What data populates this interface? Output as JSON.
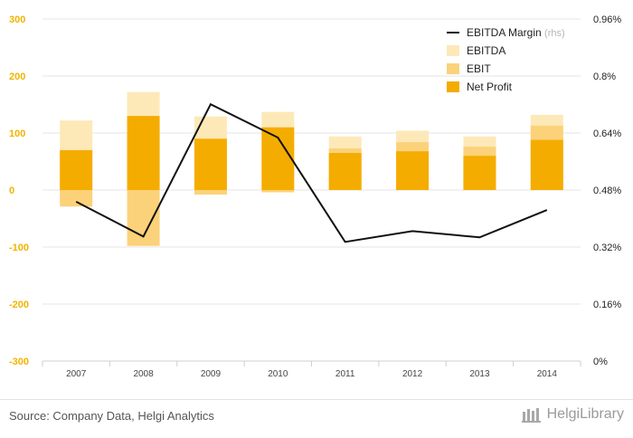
{
  "chart_data": {
    "type": "bar",
    "categories": [
      "2007",
      "2008",
      "2009",
      "2010",
      "2011",
      "2012",
      "2013",
      "2014"
    ],
    "series": [
      {
        "name": "EBITDA",
        "kind": "bar",
        "values": [
          122,
          172,
          129,
          137,
          94,
          104,
          94,
          132
        ],
        "color": "#fde9b8"
      },
      {
        "name": "EBIT",
        "kind": "bar",
        "values": [
          -29,
          -98,
          -8,
          -4,
          73,
          84,
          76,
          113
        ],
        "color": "#fbd27a"
      },
      {
        "name": "Net Profit",
        "kind": "bar",
        "values": [
          70,
          130,
          90,
          110,
          65,
          68,
          60,
          88
        ],
        "color": "#f5ac00"
      },
      {
        "name": "EBITDA Margin",
        "name_suffix": "(rhs)",
        "kind": "line",
        "axis": "right",
        "values": [
          0.4472,
          0.3496,
          0.7208,
          0.6272,
          0.3344,
          0.3648,
          0.3472,
          0.424
        ],
        "color": "#111111"
      }
    ],
    "yticks_left": [
      "300",
      "200",
      "100",
      "0",
      "-100",
      "-200",
      "-300"
    ],
    "ylim_left": [
      -300,
      300
    ],
    "yticks_right": [
      "0.96%",
      "0.8%",
      "0.64%",
      "0.48%",
      "0.32%",
      "0.16%",
      "0%"
    ],
    "ylim_right": [
      0,
      0.96
    ],
    "grid": true,
    "legend_position": "top-right"
  },
  "footer": {
    "source": "Source: Company Data, Helgi Analytics",
    "brand": "HelgiLibrary"
  }
}
